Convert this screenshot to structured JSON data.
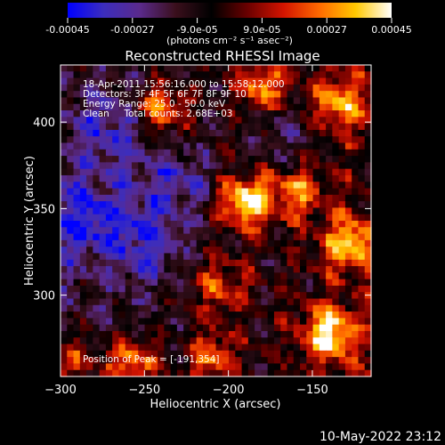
{
  "colorbar": {
    "ticks": [
      "-0.00045",
      "-0.00027",
      "-9.0e-05",
      "9.0e-05",
      "0.00027",
      "0.00045"
    ],
    "tick_values": [
      -0.00045,
      -0.00027,
      -9e-05,
      9e-05,
      0.00027,
      0.00045
    ],
    "range": [
      -0.00045,
      0.00045
    ],
    "unit_label": "(photons cm⁻² s⁻¹ asec⁻²)",
    "colors": [
      "#0000ff",
      "#3c2dbd",
      "#5a2a8c",
      "#3a0f1c",
      "#000000",
      "#6a0000",
      "#d41400",
      "#ff6a00",
      "#ffc800",
      "#ffffff"
    ]
  },
  "chart_data": {
    "type": "heatmap",
    "title": "Reconstructed RHESSI Image",
    "xlabel": "Heliocentric X (arcsec)",
    "ylabel": "Heliocentric Y (arcsec)",
    "xlim": [
      -300,
      -115
    ],
    "ylim": [
      253,
      433
    ],
    "x_ticks": [
      -300,
      -250,
      -200,
      -150
    ],
    "y_ticks": [
      300,
      350,
      400
    ],
    "x_tick_labels": [
      "−300",
      "−250",
      "−200",
      "−150"
    ],
    "y_tick_labels": [
      "300",
      "350",
      "400"
    ],
    "annotations": [
      "18-Apr-2011 15:56:16.000 to 15:58:12.000",
      "Detectors: 3F 4F 5F 6F 7F 8F 9F 10",
      "Energy Range: 25.0 - 50.0 keV",
      "Clean     Total counts: 2.68E+03"
    ],
    "peak_label": "Position of Peak = [-191,354]",
    "peak": [
      -191,
      354
    ],
    "hot_spots": [
      {
        "x": -190,
        "y": 354,
        "level": 1.0
      },
      {
        "x": -140,
        "y": 278,
        "level": 0.95
      },
      {
        "x": -258,
        "y": 260,
        "level": 0.8
      },
      {
        "x": -240,
        "y": 407,
        "level": 0.75
      },
      {
        "x": -180,
        "y": 420,
        "level": 0.7
      },
      {
        "x": -135,
        "y": 410,
        "level": 0.75
      },
      {
        "x": -128,
        "y": 330,
        "level": 0.8
      },
      {
        "x": -205,
        "y": 305,
        "level": 0.55
      },
      {
        "x": -160,
        "y": 360,
        "level": 0.6
      },
      {
        "x": -295,
        "y": 262,
        "level": 0.55
      },
      {
        "x": -210,
        "y": 265,
        "level": 0.6
      }
    ],
    "cold_spots": [
      {
        "x": -285,
        "y": 345,
        "level": -0.7
      },
      {
        "x": -250,
        "y": 330,
        "level": -0.65
      },
      {
        "x": -270,
        "y": 395,
        "level": -0.55
      },
      {
        "x": -165,
        "y": 395,
        "level": -0.45
      },
      {
        "x": -230,
        "y": 365,
        "level": -0.5
      }
    ]
  },
  "timestamp": "10-May-2022 23:12"
}
